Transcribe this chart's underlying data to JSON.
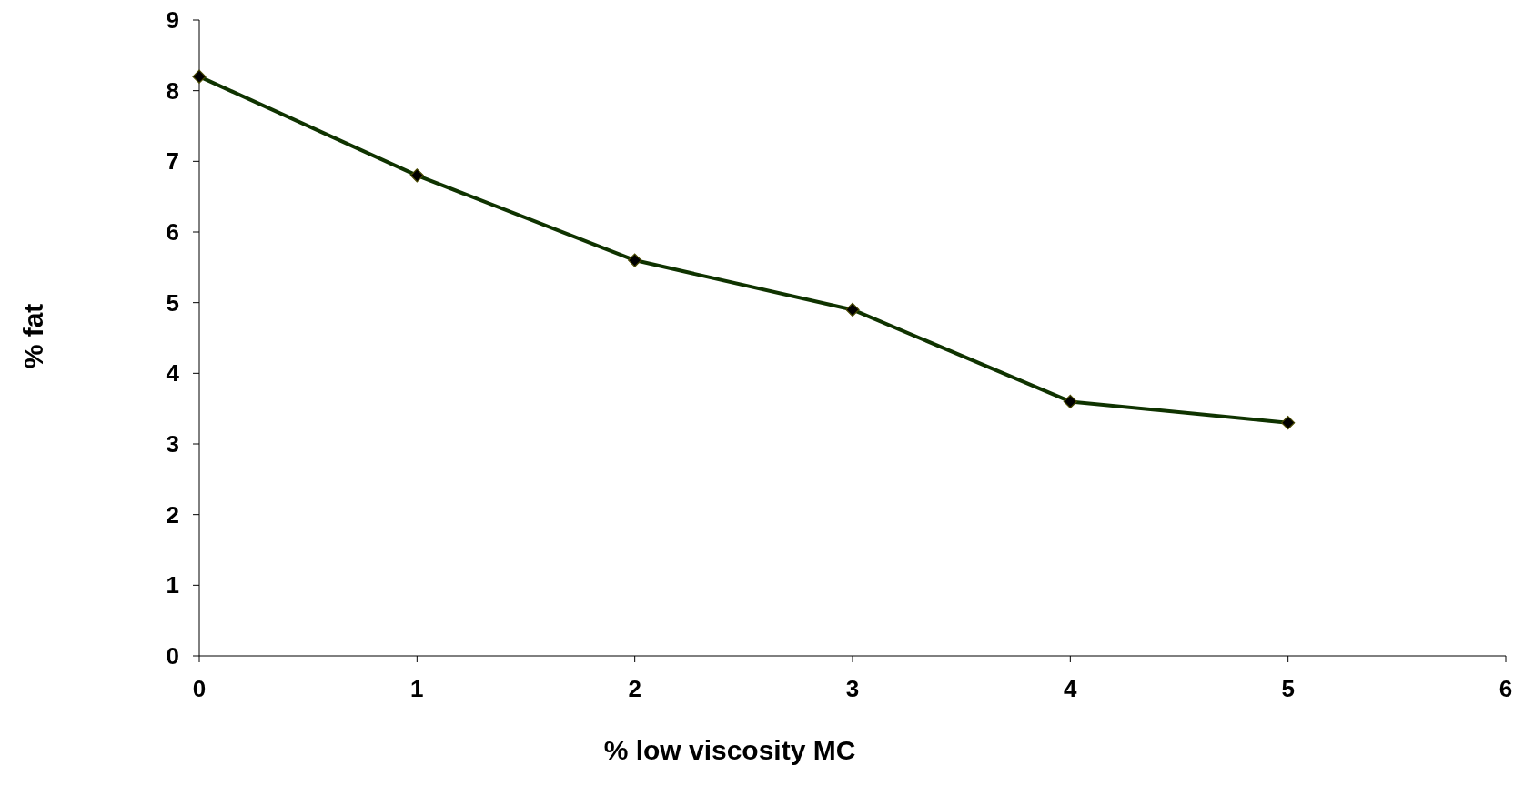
{
  "chart_data": {
    "type": "line",
    "xlabel": "% low viscosity MC",
    "ylabel": "% fat",
    "x": [
      0,
      1,
      2,
      3,
      4,
      5
    ],
    "series": [
      {
        "color": "#0f3300",
        "values": [
          8.2,
          6.8,
          5.6,
          4.9,
          3.6,
          3.3
        ]
      }
    ],
    "xlim": [
      0,
      6
    ],
    "xticks": [
      0,
      1,
      2,
      3,
      4,
      5,
      6
    ],
    "ylim": [
      0,
      9
    ],
    "yticks": [
      0,
      1,
      2,
      3,
      4,
      5,
      6,
      7,
      8,
      9
    ],
    "marker": "diamond",
    "line_style": "solid"
  }
}
